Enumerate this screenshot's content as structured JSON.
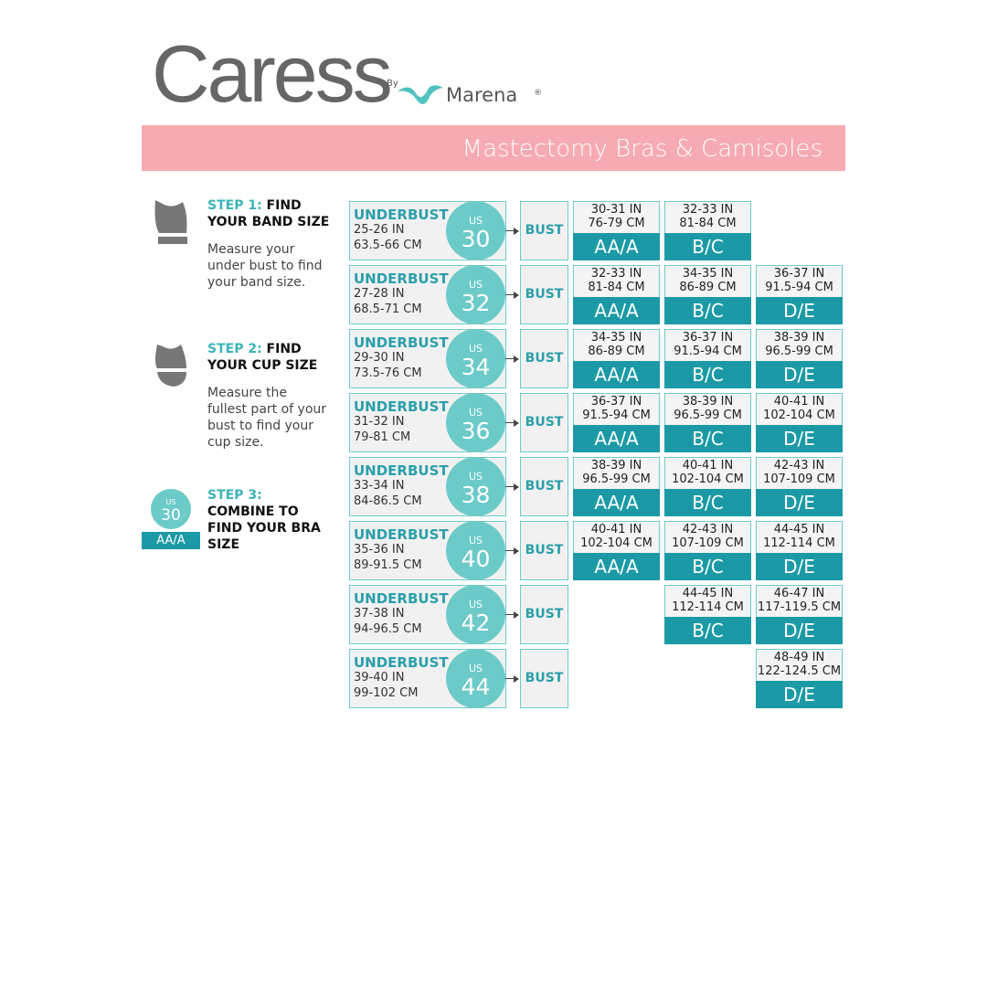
{
  "header": {
    "brand": "Caress",
    "trademark": "™",
    "by": "By",
    "partner": "Marena",
    "registered": "®",
    "banner": "Mastectomy Bras & Camisoles"
  },
  "steps": [
    {
      "label": "STEP 1:",
      "title": "FIND YOUR BAND SIZE",
      "text": "Measure your under bust to find your band size."
    },
    {
      "label": "STEP 2:",
      "title": "FIND YOUR CUP SIZE",
      "text": "Measure the fullest part of your bust  to find your cup size."
    },
    {
      "label": "STEP 3:",
      "title": "COMBINE TO FIND YOUR BRA SIZE",
      "icon_us": "US",
      "icon_band": "30",
      "icon_cup": "AA/A"
    }
  ],
  "table": {
    "underbust_label": "UNDERBUST",
    "us_label": "US",
    "bust_label": "BUST",
    "rows": [
      {
        "inches": "25-26 IN",
        "cm": "63.5-66 CM",
        "band": 30,
        "cells": [
          {
            "inches": "30-31 IN",
            "cm": "76-79 CM",
            "cup": "AA/A"
          },
          {
            "inches": "32-33 IN",
            "cm": "81-84 CM",
            "cup": "B/C"
          },
          null
        ]
      },
      {
        "inches": "27-28 IN",
        "cm": "68.5-71 CM",
        "band": 32,
        "cells": [
          {
            "inches": "32-33 IN",
            "cm": "81-84 CM",
            "cup": "AA/A"
          },
          {
            "inches": "34-35 IN",
            "cm": "86-89 CM",
            "cup": "B/C"
          },
          {
            "inches": "36-37 IN",
            "cm": "91.5-94 CM",
            "cup": "D/E"
          }
        ]
      },
      {
        "inches": "29-30 IN",
        "cm": "73.5-76 CM",
        "band": 34,
        "cells": [
          {
            "inches": "34-35 IN",
            "cm": "86-89 CM",
            "cup": "AA/A"
          },
          {
            "inches": "36-37 IN",
            "cm": "91.5-94 CM",
            "cup": "B/C"
          },
          {
            "inches": "38-39 IN",
            "cm": "96.5-99 CM",
            "cup": "D/E"
          }
        ]
      },
      {
        "inches": "31-32 IN",
        "cm": "79-81 CM",
        "band": 36,
        "cells": [
          {
            "inches": "36-37 IN",
            "cm": "91.5-94 CM",
            "cup": "AA/A"
          },
          {
            "inches": "38-39 IN",
            "cm": "96.5-99 CM",
            "cup": "B/C"
          },
          {
            "inches": "40-41 IN",
            "cm": "102-104 CM",
            "cup": "D/E"
          }
        ]
      },
      {
        "inches": "33-34 IN",
        "cm": "84-86.5 CM",
        "band": 38,
        "cells": [
          {
            "inches": "38-39 IN",
            "cm": "96.5-99 CM",
            "cup": "AA/A"
          },
          {
            "inches": "40-41 IN",
            "cm": "102-104 CM",
            "cup": "B/C"
          },
          {
            "inches": "42-43 IN",
            "cm": "107-109 CM",
            "cup": "D/E"
          }
        ]
      },
      {
        "inches": "35-36 IN",
        "cm": "89-91.5 CM",
        "band": 40,
        "cells": [
          {
            "inches": "40-41 IN",
            "cm": "102-104 CM",
            "cup": "AA/A"
          },
          {
            "inches": "42-43 IN",
            "cm": "107-109 CM",
            "cup": "B/C"
          },
          {
            "inches": "44-45 IN",
            "cm": "112-114 CM",
            "cup": "D/E"
          }
        ]
      },
      {
        "inches": "37-38 IN",
        "cm": "94-96.5 CM",
        "band": 42,
        "cells": [
          null,
          {
            "inches": "44-45 IN",
            "cm": "112-114 CM",
            "cup": "B/C"
          },
          {
            "inches": "46-47 IN",
            "cm": "117-119.5 CM",
            "cup": "D/E"
          }
        ]
      },
      {
        "inches": "39-40 IN",
        "cm": "99-102 CM",
        "band": 44,
        "cells": [
          null,
          null,
          {
            "inches": "48-49 IN",
            "cm": "122-124.5 CM",
            "cup": "D/E"
          }
        ]
      }
    ]
  }
}
